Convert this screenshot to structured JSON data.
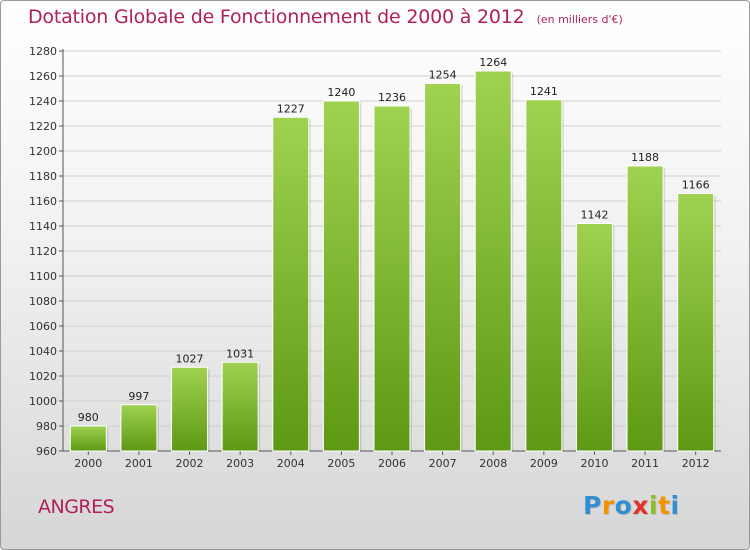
{
  "title": "Dotation Globale de Fonctionnement de 2000 à 2012",
  "unit_note": "(en milliers d'€)",
  "place": "ANGRES",
  "logo": {
    "letters": [
      "P",
      "r",
      "o",
      "x",
      "i",
      "t",
      "i"
    ],
    "colors": [
      "#2f8fd1",
      "#f39200",
      "#2f8fd1",
      "#e2312d",
      "#8cbb2a",
      "#f39200",
      "#2f8fd1"
    ]
  },
  "colors": {
    "bar_top": "#9fd250",
    "bar_bottom": "#5d9913",
    "title": "#b0205c",
    "grid": "#d0d0d0"
  },
  "chart_data": {
    "type": "bar",
    "categories": [
      "2000",
      "2001",
      "2002",
      "2003",
      "2004",
      "2005",
      "2006",
      "2007",
      "2008",
      "2009",
      "2010",
      "2011",
      "2012"
    ],
    "values": [
      980,
      997,
      1027,
      1031,
      1227,
      1240,
      1236,
      1254,
      1264,
      1241,
      1142,
      1188,
      1166
    ],
    "data_labels": [
      "980",
      "997",
      "1027",
      "1031",
      "1227",
      "1240",
      "1236",
      "1254",
      "1264",
      "1241",
      "1142",
      "1188",
      "1166"
    ],
    "yticks": [
      "960",
      "980",
      "1000",
      "1020",
      "1040",
      "1060",
      "1080",
      "1100",
      "1120",
      "1140",
      "1160",
      "1180",
      "1200",
      "1220",
      "1240",
      "1260",
      "1280"
    ],
    "ylim": [
      960,
      1280
    ],
    "ystep": 20,
    "grid": true,
    "legend": "none"
  }
}
